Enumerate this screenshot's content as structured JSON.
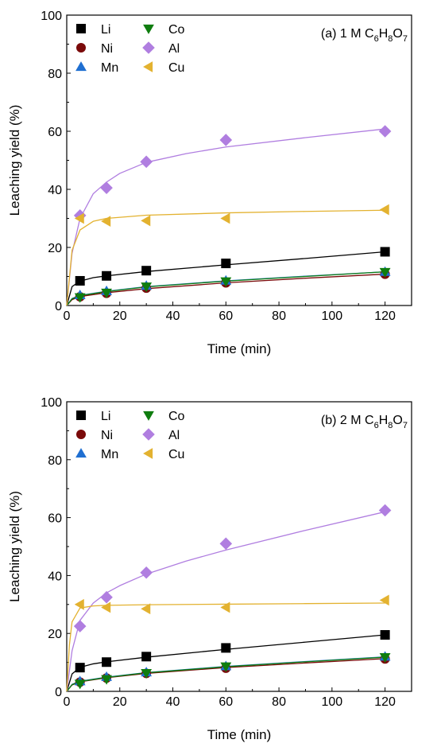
{
  "chart_data": [
    {
      "type": "scatter",
      "panel_label": "(a) 1 M ",
      "formula": [
        {
          "t": "C"
        },
        {
          "t": "6",
          "sub": true
        },
        {
          "t": "H"
        },
        {
          "t": "8",
          "sub": true
        },
        {
          "t": "O"
        },
        {
          "t": "7",
          "sub": true
        }
      ],
      "xlabel": "Time (min)",
      "ylabel": "Leaching yield (%)",
      "xlim": [
        0,
        130
      ],
      "ylim": [
        0,
        100
      ],
      "xticks": [
        0,
        20,
        40,
        60,
        80,
        100,
        120
      ],
      "yticks": [
        0,
        20,
        40,
        60,
        80,
        100
      ],
      "x": [
        0,
        5,
        15,
        30,
        60,
        120
      ],
      "series": [
        {
          "name": "Li",
          "marker": "square",
          "color": "#000000",
          "values": [
            0,
            8.5,
            10.2,
            12,
            14.5,
            18.5
          ],
          "fit": [
            [
              0,
              0
            ],
            [
              2,
              6.5
            ],
            [
              5,
              8.4
            ],
            [
              10,
              9.6
            ],
            [
              15,
              10.2
            ],
            [
              30,
              11.7
            ],
            [
              60,
              14
            ],
            [
              90,
              16.2
            ],
            [
              120,
              18.5
            ]
          ]
        },
        {
          "name": "Ni",
          "marker": "circle",
          "color": "#7a0a0a",
          "values": [
            0,
            3,
            4.2,
            6,
            7.8,
            10.8
          ],
          "fit": [
            [
              0,
              0
            ],
            [
              2,
              2
            ],
            [
              5,
              3.1
            ],
            [
              15,
              4.4
            ],
            [
              30,
              5.8
            ],
            [
              60,
              7.8
            ],
            [
              90,
              9.4
            ],
            [
              120,
              10.8
            ]
          ]
        },
        {
          "name": "Mn",
          "marker": "triangle-up",
          "color": "#1f6fd1",
          "values": [
            0,
            3.6,
            5,
            6.8,
            8.6,
            11.6
          ],
          "fit": [
            [
              0,
              0
            ],
            [
              2,
              2.4
            ],
            [
              5,
              3.5
            ],
            [
              15,
              4.9
            ],
            [
              30,
              6.5
            ],
            [
              60,
              8.5
            ],
            [
              90,
              10.1
            ],
            [
              120,
              11.6
            ]
          ]
        },
        {
          "name": "Co",
          "marker": "triangle-down",
          "color": "#0f7d0f",
          "values": [
            0,
            2.8,
            4.4,
            6.5,
            8.3,
            11.5
          ],
          "fit": [
            [
              0,
              0
            ],
            [
              2,
              2.3
            ],
            [
              5,
              3.4
            ],
            [
              15,
              4.8
            ],
            [
              30,
              6.4
            ],
            [
              60,
              8.4
            ],
            [
              90,
              10
            ],
            [
              120,
              11.6
            ]
          ]
        },
        {
          "name": "Al",
          "marker": "diamond",
          "color": "#b07ee0",
          "values": [
            0,
            31,
            40.5,
            49.5,
            57,
            60
          ],
          "fit": [
            [
              0,
              0
            ],
            [
              2,
              18
            ],
            [
              5,
              30
            ],
            [
              10,
              38.5
            ],
            [
              15,
              42.5
            ],
            [
              20,
              45.5
            ],
            [
              30,
              49.3
            ],
            [
              45,
              52.3
            ],
            [
              60,
              54.6
            ],
            [
              90,
              57.8
            ],
            [
              120,
              60.8
            ]
          ]
        },
        {
          "name": "Cu",
          "marker": "triangle-left",
          "color": "#e3b230",
          "values": [
            0,
            30,
            29,
            29.2,
            30,
            33
          ],
          "fit": [
            [
              0,
              0
            ],
            [
              2,
              19
            ],
            [
              5,
              26
            ],
            [
              10,
              29
            ],
            [
              15,
              30
            ],
            [
              30,
              31.1
            ],
            [
              60,
              31.9
            ],
            [
              90,
              32.4
            ],
            [
              120,
              32.8
            ]
          ]
        }
      ],
      "legend": {
        "placement": "top-left",
        "columns": 2,
        "order": [
          "Li",
          "Co",
          "Ni",
          "Al",
          "Mn",
          "Cu"
        ]
      }
    },
    {
      "type": "scatter",
      "panel_label": "(b) 2 M ",
      "formula": [
        {
          "t": "C"
        },
        {
          "t": "6",
          "sub": true
        },
        {
          "t": "H"
        },
        {
          "t": "8",
          "sub": true
        },
        {
          "t": "O"
        },
        {
          "t": "7",
          "sub": true
        }
      ],
      "xlabel": "Time (min)",
      "ylabel": "Leaching yield (%)",
      "xlim": [
        0,
        130
      ],
      "ylim": [
        0,
        100
      ],
      "xticks": [
        0,
        20,
        40,
        60,
        80,
        100,
        120
      ],
      "yticks": [
        0,
        20,
        40,
        60,
        80,
        100
      ],
      "x": [
        0,
        5,
        15,
        30,
        60,
        120
      ],
      "series": [
        {
          "name": "Li",
          "marker": "square",
          "color": "#000000",
          "values": [
            0,
            8.2,
            10.1,
            12,
            15,
            19.5
          ],
          "fit": [
            [
              0,
              0
            ],
            [
              2,
              6
            ],
            [
              5,
              8.3
            ],
            [
              10,
              9.5
            ],
            [
              15,
              10.2
            ],
            [
              30,
              11.8
            ],
            [
              60,
              14.5
            ],
            [
              90,
              17
            ],
            [
              120,
              19.5
            ]
          ]
        },
        {
          "name": "Ni",
          "marker": "circle",
          "color": "#7a0a0a",
          "values": [
            0,
            3.2,
            4.6,
            6.2,
            8,
            11.2
          ],
          "fit": [
            [
              0,
              0
            ],
            [
              2,
              2.2
            ],
            [
              5,
              3.3
            ],
            [
              15,
              4.7
            ],
            [
              30,
              6.2
            ],
            [
              60,
              8.2
            ],
            [
              90,
              9.8
            ],
            [
              120,
              11.3
            ]
          ]
        },
        {
          "name": "Mn",
          "marker": "triangle-up",
          "color": "#1f6fd1",
          "values": [
            0,
            3.5,
            5,
            6.6,
            8.7,
            12
          ],
          "fit": [
            [
              0,
              0
            ],
            [
              2,
              2.4
            ],
            [
              5,
              3.5
            ],
            [
              15,
              4.9
            ],
            [
              30,
              6.5
            ],
            [
              60,
              8.6
            ],
            [
              90,
              10.3
            ],
            [
              120,
              11.9
            ]
          ]
        },
        {
          "name": "Co",
          "marker": "triangle-down",
          "color": "#0f7d0f",
          "values": [
            0,
            2.6,
            4.2,
            6.3,
            8.6,
            11.8
          ],
          "fit": [
            [
              0,
              0
            ],
            [
              2,
              2.3
            ],
            [
              5,
              3.4
            ],
            [
              15,
              4.8
            ],
            [
              30,
              6.4
            ],
            [
              60,
              8.5
            ],
            [
              90,
              10.2
            ],
            [
              120,
              11.8
            ]
          ]
        },
        {
          "name": "Al",
          "marker": "diamond",
          "color": "#b07ee0",
          "values": [
            0,
            22.5,
            32.5,
            41,
            51,
            62.5
          ],
          "fit": [
            [
              0,
              0
            ],
            [
              2,
              14
            ],
            [
              5,
              24.5
            ],
            [
              10,
              30.5
            ],
            [
              15,
              34
            ],
            [
              20,
              36.5
            ],
            [
              30,
              40.5
            ],
            [
              45,
              45
            ],
            [
              60,
              48.8
            ],
            [
              90,
              55.6
            ],
            [
              120,
              62
            ]
          ]
        },
        {
          "name": "Cu",
          "marker": "triangle-left",
          "color": "#e3b230",
          "values": [
            0,
            30,
            29,
            28.5,
            29,
            31.5
          ],
          "fit": [
            [
              0,
              0
            ],
            [
              1,
              16
            ],
            [
              2,
              24
            ],
            [
              5,
              28.8
            ],
            [
              10,
              29.5
            ],
            [
              15,
              29.7
            ],
            [
              30,
              29.9
            ],
            [
              60,
              30.1
            ],
            [
              90,
              30.3
            ],
            [
              120,
              30.5
            ]
          ]
        }
      ],
      "legend": {
        "placement": "top-left",
        "columns": 2,
        "order": [
          "Li",
          "Co",
          "Ni",
          "Al",
          "Mn",
          "Cu"
        ]
      }
    }
  ]
}
